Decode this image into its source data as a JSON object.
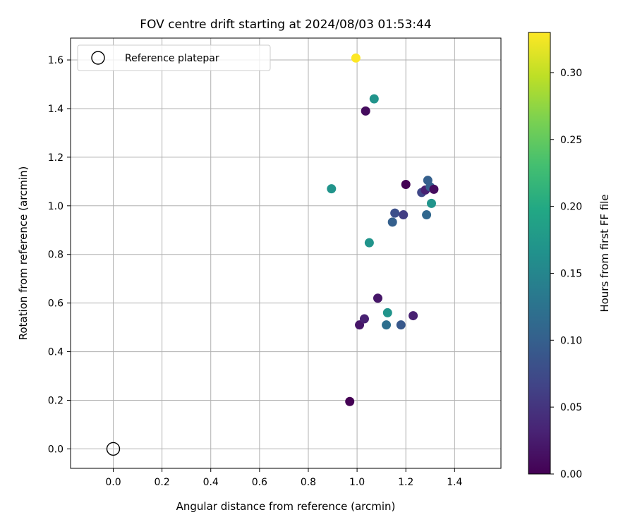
{
  "chart_data": {
    "type": "scatter",
    "title": "FOV centre drift starting at 2024/08/03 01:53:44",
    "xlabel": "Angular distance from reference (arcmin)",
    "ylabel": "Rotation from reference (arcmin)",
    "xlim": [
      -0.175,
      1.59
    ],
    "ylim": [
      -0.08,
      1.69
    ],
    "xticks": [
      0.0,
      0.2,
      0.4,
      0.6,
      0.8,
      1.0,
      1.2,
      1.4
    ],
    "xtick_labels": [
      "0.0",
      "0.2",
      "0.4",
      "0.6",
      "0.8",
      "1.0",
      "1.2",
      "1.4"
    ],
    "yticks": [
      0.0,
      0.2,
      0.4,
      0.6,
      0.8,
      1.0,
      1.2,
      1.4,
      1.6
    ],
    "ytick_labels": [
      "0.0",
      "0.2",
      "0.4",
      "0.6",
      "0.8",
      "1.0",
      "1.2",
      "1.4",
      "1.6"
    ],
    "grid": true,
    "legend": {
      "position": "top-left",
      "entries": [
        "Reference platepar"
      ]
    },
    "reference_point": {
      "x": 0.0,
      "y": 0.0,
      "label": "Reference platepar"
    },
    "colorbar": {
      "label": "Hours from first FF file",
      "colormap": "viridis",
      "range": [
        0.0,
        0.33
      ],
      "ticks": [
        0.0,
        0.05,
        0.1,
        0.15,
        0.2,
        0.25,
        0.3
      ],
      "tick_labels": [
        "0.00",
        "0.05",
        "0.10",
        "0.15",
        "0.20",
        "0.25",
        "0.30"
      ]
    },
    "points": [
      {
        "x": 0.97,
        "y": 0.195,
        "hours": 0.0
      },
      {
        "x": 1.01,
        "y": 0.51,
        "hours": 0.02
      },
      {
        "x": 1.03,
        "y": 0.535,
        "hours": 0.03
      },
      {
        "x": 1.085,
        "y": 0.62,
        "hours": 0.02
      },
      {
        "x": 1.12,
        "y": 0.51,
        "hours": 0.12
      },
      {
        "x": 1.125,
        "y": 0.56,
        "hours": 0.17
      },
      {
        "x": 1.18,
        "y": 0.51,
        "hours": 0.09
      },
      {
        "x": 1.23,
        "y": 0.548,
        "hours": 0.03
      },
      {
        "x": 1.05,
        "y": 0.848,
        "hours": 0.17
      },
      {
        "x": 0.895,
        "y": 1.07,
        "hours": 0.17
      },
      {
        "x": 1.145,
        "y": 0.933,
        "hours": 0.1
      },
      {
        "x": 1.155,
        "y": 0.97,
        "hours": 0.08
      },
      {
        "x": 1.19,
        "y": 0.963,
        "hours": 0.06
      },
      {
        "x": 1.2,
        "y": 1.088,
        "hours": 0.0
      },
      {
        "x": 1.265,
        "y": 1.055,
        "hours": 0.07
      },
      {
        "x": 1.28,
        "y": 1.065,
        "hours": 0.03
      },
      {
        "x": 1.29,
        "y": 1.105,
        "hours": 0.1
      },
      {
        "x": 1.3,
        "y": 1.078,
        "hours": 0.1
      },
      {
        "x": 1.315,
        "y": 1.068,
        "hours": 0.01
      },
      {
        "x": 1.285,
        "y": 0.963,
        "hours": 0.11
      },
      {
        "x": 1.305,
        "y": 1.01,
        "hours": 0.17
      },
      {
        "x": 1.035,
        "y": 1.39,
        "hours": 0.01
      },
      {
        "x": 1.07,
        "y": 1.44,
        "hours": 0.17
      },
      {
        "x": 0.995,
        "y": 1.608,
        "hours": 0.33
      }
    ]
  }
}
